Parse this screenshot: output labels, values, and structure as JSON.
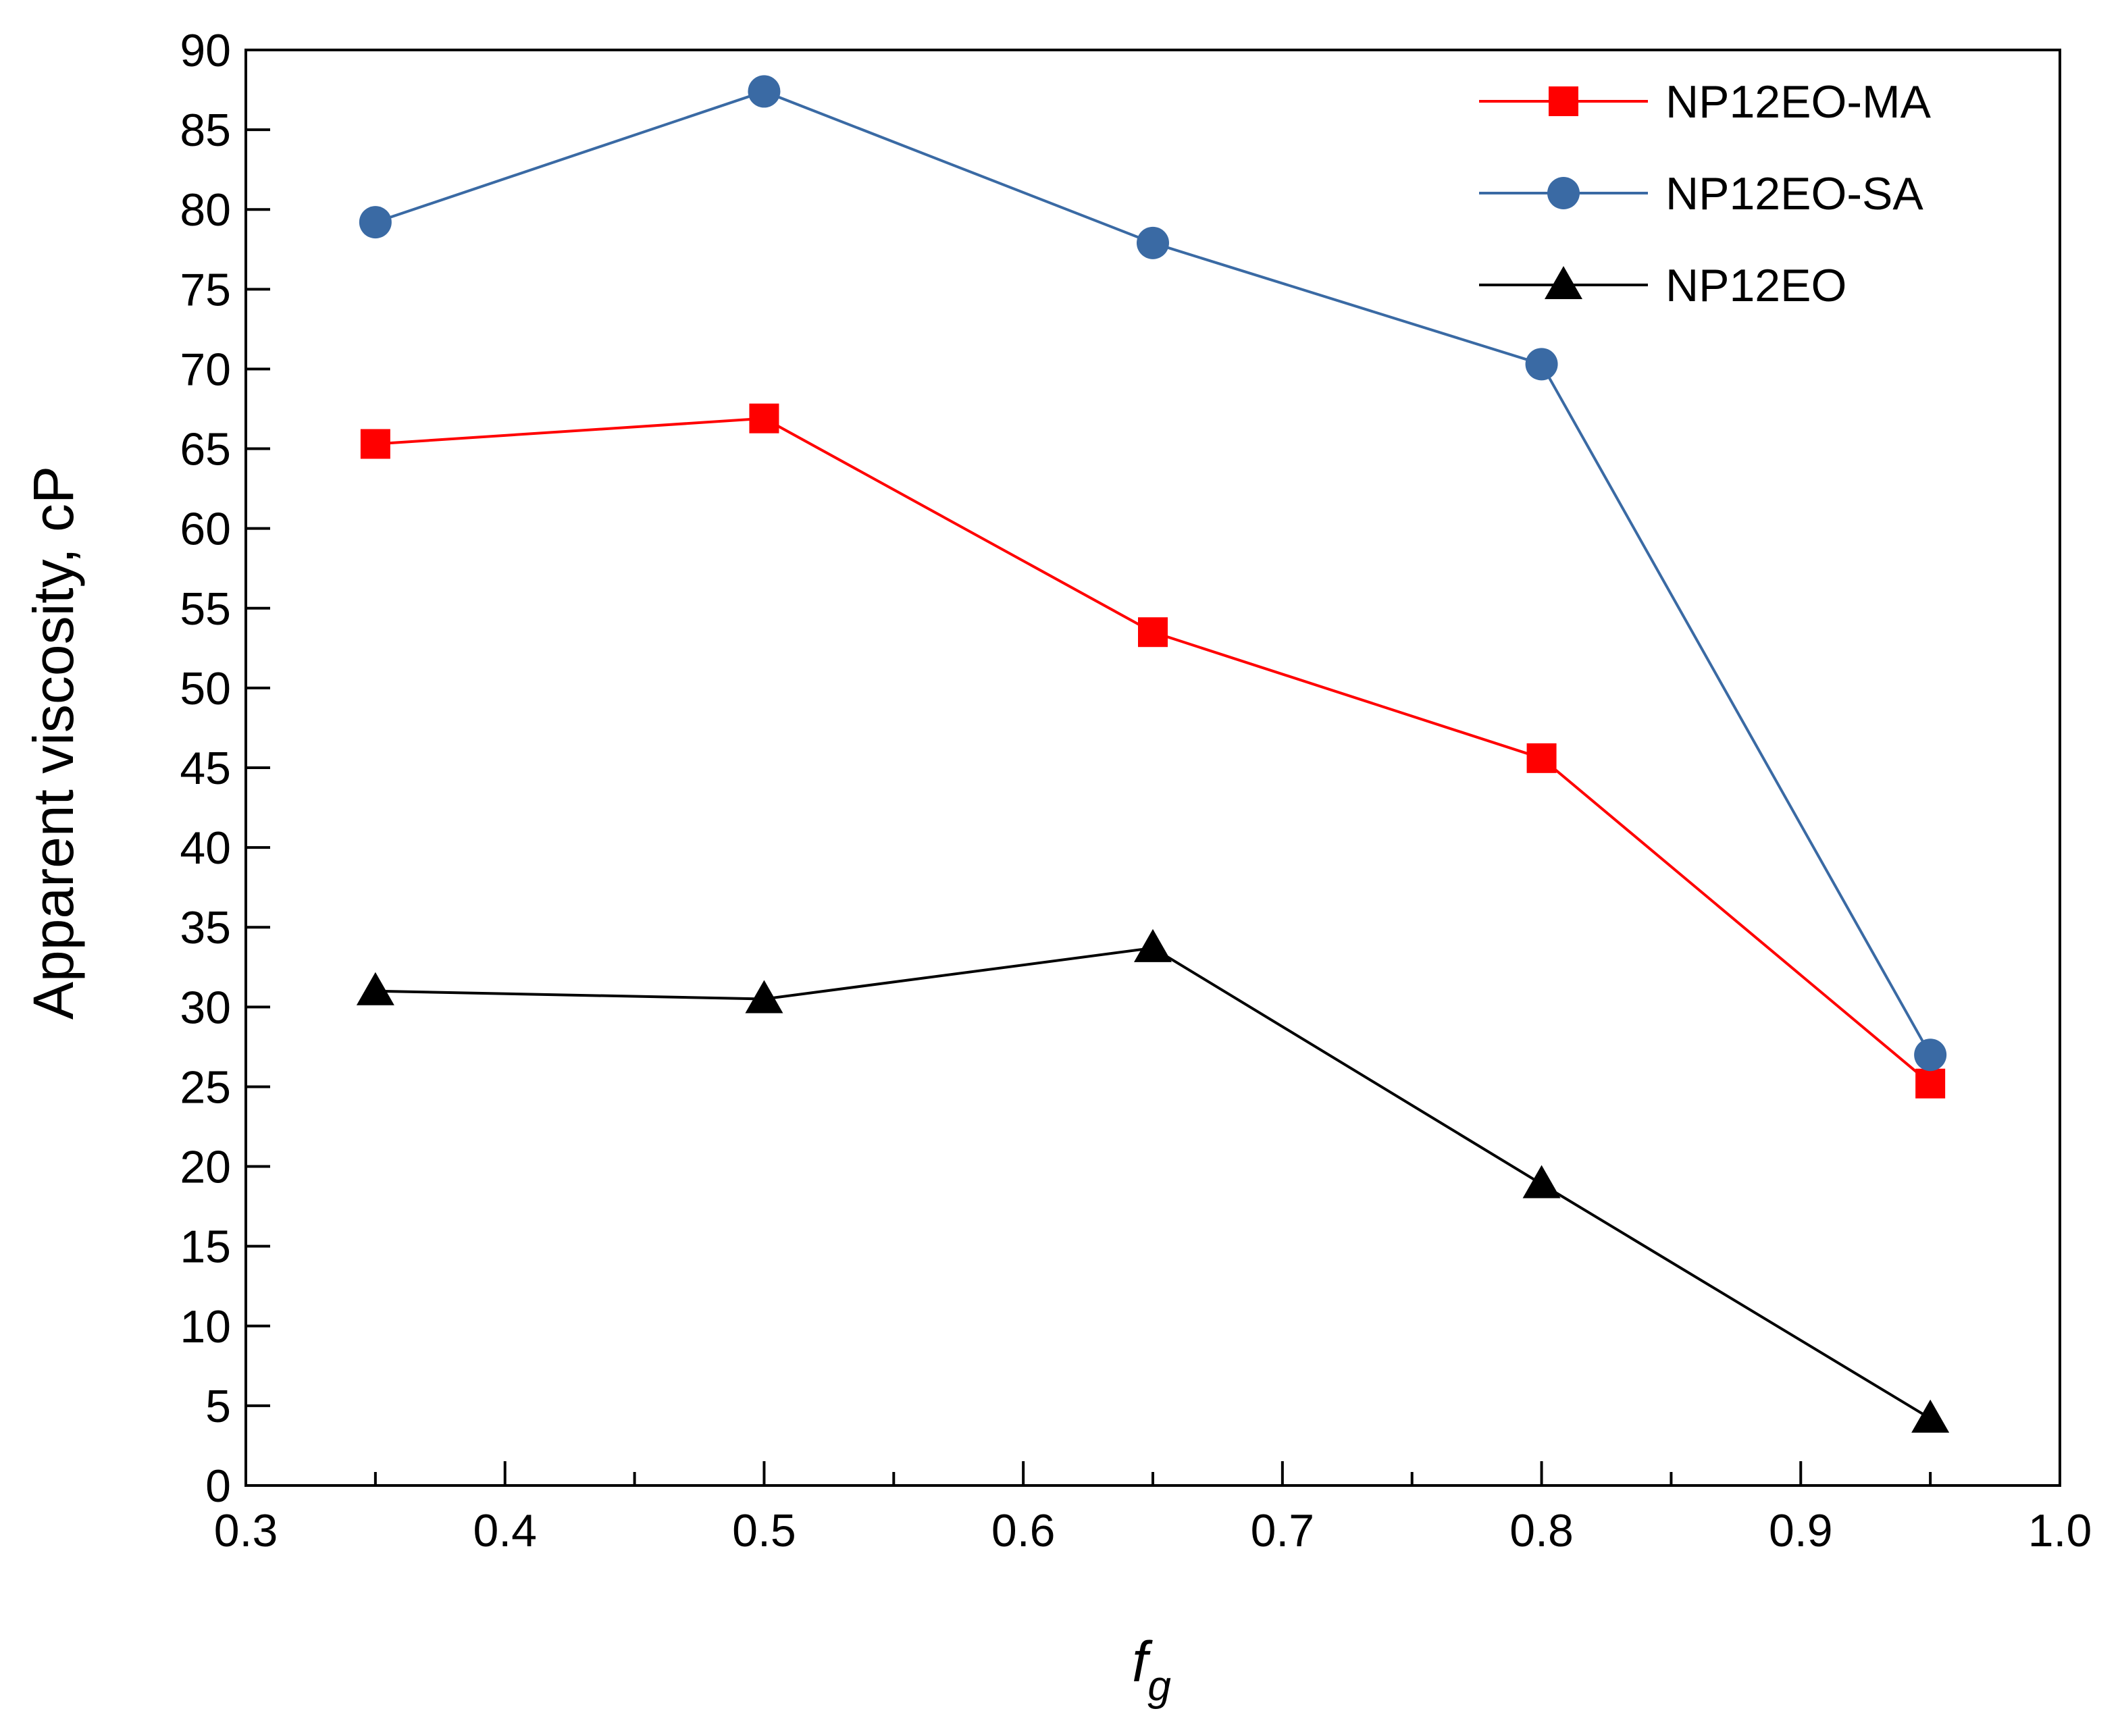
{
  "chart_data": {
    "type": "line",
    "title": "",
    "xlabel": "f",
    "xlabel_subscript": "g",
    "ylabel": "Apparent viscosity, cP",
    "xlim": [
      0.3,
      1.0
    ],
    "ylim": [
      0,
      90
    ],
    "x_ticks": [
      0.3,
      0.4,
      0.5,
      0.6,
      0.7,
      0.8,
      0.9,
      1.0
    ],
    "x_tick_labels": [
      "0.3",
      "0.4",
      "0.5",
      "0.6",
      "0.7",
      "0.8",
      "0.9",
      "1.0"
    ],
    "y_ticks": [
      0,
      5,
      10,
      15,
      20,
      25,
      30,
      35,
      40,
      45,
      50,
      55,
      60,
      65,
      70,
      75,
      80,
      85,
      90
    ],
    "y_tick_labels": [
      "0",
      "5",
      "10",
      "15",
      "20",
      "25",
      "30",
      "35",
      "40",
      "45",
      "50",
      "55",
      "60",
      "65",
      "70",
      "75",
      "80",
      "85",
      "90"
    ],
    "grid": false,
    "legend_position": "top-right",
    "x": [
      0.35,
      0.5,
      0.65,
      0.8,
      0.95
    ],
    "series": [
      {
        "name": "NP12EO-MA",
        "color": "#ff0000",
        "marker": "square",
        "values": [
          65.3,
          66.9,
          53.5,
          45.6,
          25.2
        ]
      },
      {
        "name": "NP12EO-SA",
        "color": "#3a6aa4",
        "marker": "circle",
        "values": [
          79.2,
          87.4,
          77.9,
          70.3,
          27.0
        ]
      },
      {
        "name": "NP12EO",
        "color": "#000000",
        "marker": "triangle",
        "values": [
          31.0,
          30.5,
          33.7,
          18.9,
          4.2
        ]
      }
    ]
  }
}
